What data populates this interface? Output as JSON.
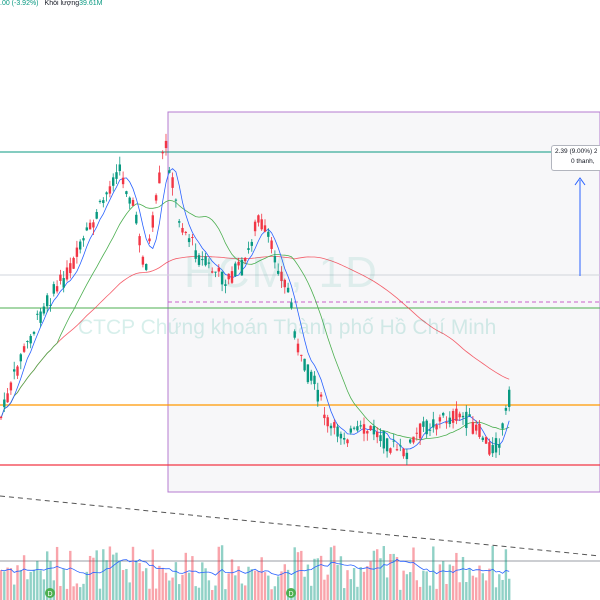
{
  "header": {
    "change_text": ".00 (-3.92%)",
    "volume_label": "Khối lượng",
    "volume_value": "39.61M"
  },
  "watermark": {
    "ticker": "HCM, 1D",
    "company": "CTCP Chứng khoán Thành phố Hồ Chí Minh"
  },
  "measure_tooltip": {
    "line1": "2.39 (9.00%) 23",
    "line2": "0 thanh,"
  },
  "colors": {
    "up": "#089981",
    "down": "#f23645",
    "ma_fast": "#2962ff",
    "ma_mid": "#4caf50",
    "ma_slow": "#f23645",
    "measure_box": "#9c27b0",
    "resistance_green": "#089981",
    "support_orange": "#ff9800",
    "support_red": "#f23645"
  },
  "icons": [
    "dividend-marker-icon",
    "arrow-up-icon"
  ]
}
